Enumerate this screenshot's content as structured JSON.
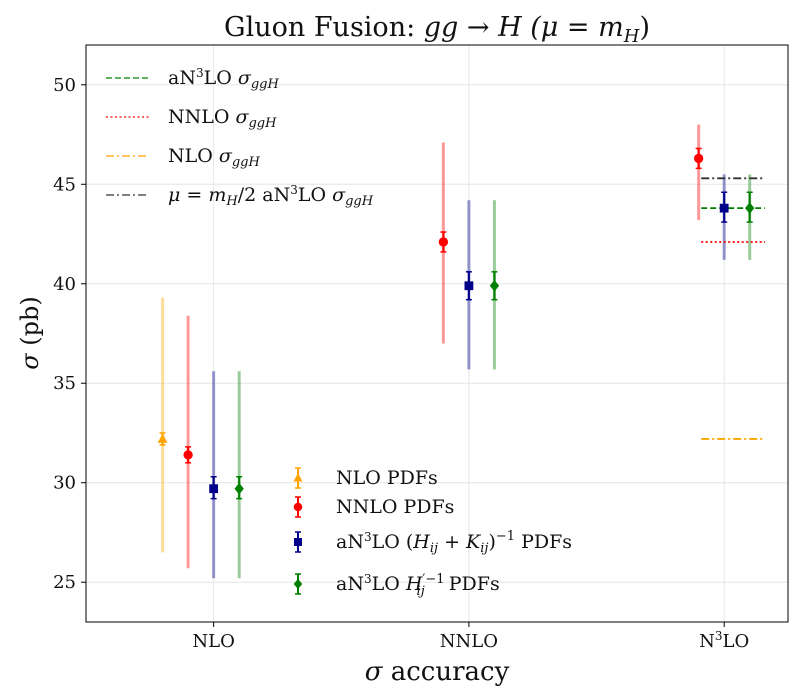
{
  "chart_data": {
    "type": "scatter",
    "title": {
      "main": "Gluon Fusion: ",
      "formula": "gg → H (μ = m",
      "sub": "H",
      "tail": ")"
    },
    "xlabel": {
      "sym": "σ",
      "text": " accuracy"
    },
    "ylabel": {
      "sym": "σ",
      "text": " (pb)"
    },
    "ylim": [
      23,
      52
    ],
    "yticks": [
      25,
      30,
      35,
      40,
      45,
      50
    ],
    "grid": true,
    "categories": [
      {
        "label": "NLO",
        "main": "NLO",
        "sup": ""
      },
      {
        "label": "NNLO",
        "main": "NNLO",
        "sup": ""
      },
      {
        "label": "N3LO",
        "main": "N",
        "sup": "3",
        "rest": "LO"
      }
    ],
    "series": [
      {
        "name": "NLO PDFs",
        "marker": "triangle",
        "color": "#FFA500",
        "offset": -0.2,
        "points": [
          {
            "cat": 0,
            "y": 32.2,
            "err_lo": 31.9,
            "err_hi": 32.5,
            "band_lo": 26.5,
            "band_hi": 39.3
          }
        ]
      },
      {
        "name": "NNLO PDFs",
        "marker": "circle",
        "color": "#FF0000",
        "offset": -0.1,
        "points": [
          {
            "cat": 0,
            "y": 31.4,
            "err_lo": 31.0,
            "err_hi": 31.8,
            "band_lo": 25.7,
            "band_hi": 38.4
          },
          {
            "cat": 1,
            "y": 42.1,
            "err_lo": 41.6,
            "err_hi": 42.6,
            "band_lo": 37.0,
            "band_hi": 47.1
          },
          {
            "cat": 2,
            "y": 46.3,
            "err_lo": 45.8,
            "err_hi": 46.8,
            "band_lo": 43.2,
            "band_hi": 48.0
          }
        ]
      },
      {
        "name": "aN3LO (Hij+Kij)^-1 PDFs",
        "marker": "square",
        "color": "#00008B",
        "offset": 0.0,
        "points": [
          {
            "cat": 0,
            "y": 29.7,
            "err_lo": 29.2,
            "err_hi": 30.3,
            "band_lo": 25.2,
            "band_hi": 35.6
          },
          {
            "cat": 1,
            "y": 39.9,
            "err_lo": 39.2,
            "err_hi": 40.6,
            "band_lo": 35.7,
            "band_hi": 44.2
          },
          {
            "cat": 2,
            "y": 43.8,
            "err_lo": 43.1,
            "err_hi": 44.6,
            "band_lo": 41.2,
            "band_hi": 45.5
          }
        ]
      },
      {
        "name": "aN3LO H'ij^-1 PDFs",
        "marker": "diamond",
        "color": "#008000",
        "offset": 0.1,
        "points": [
          {
            "cat": 0,
            "y": 29.7,
            "err_lo": 29.2,
            "err_hi": 30.3,
            "band_lo": 25.2,
            "band_hi": 35.6
          },
          {
            "cat": 1,
            "y": 39.9,
            "err_lo": 39.2,
            "err_hi": 40.6,
            "band_lo": 35.7,
            "band_hi": 44.2
          },
          {
            "cat": 2,
            "y": 43.8,
            "err_lo": 43.1,
            "err_hi": 44.6,
            "band_lo": 41.2,
            "band_hi": 45.5
          }
        ]
      }
    ],
    "reference_lines": [
      {
        "name": "aN3LO σggH",
        "y": 43.8,
        "color": "#008000",
        "style": "dashed",
        "cat": 2
      },
      {
        "name": "NNLO σggH",
        "y": 42.1,
        "color": "#FF0000",
        "style": "dotted",
        "cat": 2
      },
      {
        "name": "NLO σggH",
        "y": 32.2,
        "color": "#FFA500",
        "style": "dashdot",
        "cat": 2
      },
      {
        "name": "μ = mH/2 aN3LO σggH",
        "y": 45.3,
        "color": "#333333",
        "style": "dashdot",
        "cat": 2
      }
    ],
    "legend_lines": [
      {
        "pre": "aN",
        "sup": "3",
        "mid": "LO ",
        "sym": "σ",
        "sub": "ggH"
      },
      {
        "pre": "NNLO ",
        "sup": "",
        "mid": "",
        "sym": "σ",
        "sub": "ggH"
      },
      {
        "pre": "NLO ",
        "sup": "",
        "mid": "",
        "sym": "σ",
        "sub": "ggH"
      },
      {
        "lead": "μ = m",
        "leadsub": "H",
        "leadtail": "/2 ",
        "pre": "aN",
        "sup": "3",
        "mid": "LO ",
        "sym": "σ",
        "sub": "ggH"
      }
    ],
    "legend_points": [
      {
        "text": "NLO PDFs"
      },
      {
        "text": "NNLO PDFs"
      },
      {
        "pre": "aN",
        "sup": "3",
        "mid": "LO (",
        "f1": "H",
        "f1sub": "ij",
        "plus": " + ",
        "f2": "K",
        "f2sub": "ij",
        "close": ")",
        "exp": "−1",
        "tail": " PDFs"
      },
      {
        "pre": "aN",
        "sup": "3",
        "mid": "LO ",
        "f1": "H",
        "f1sub": "ij",
        "prime": "′",
        "exp": "−1",
        "tail": " PDFs"
      }
    ],
    "legend_placement": [
      "upper-left",
      "lower-center"
    ]
  }
}
